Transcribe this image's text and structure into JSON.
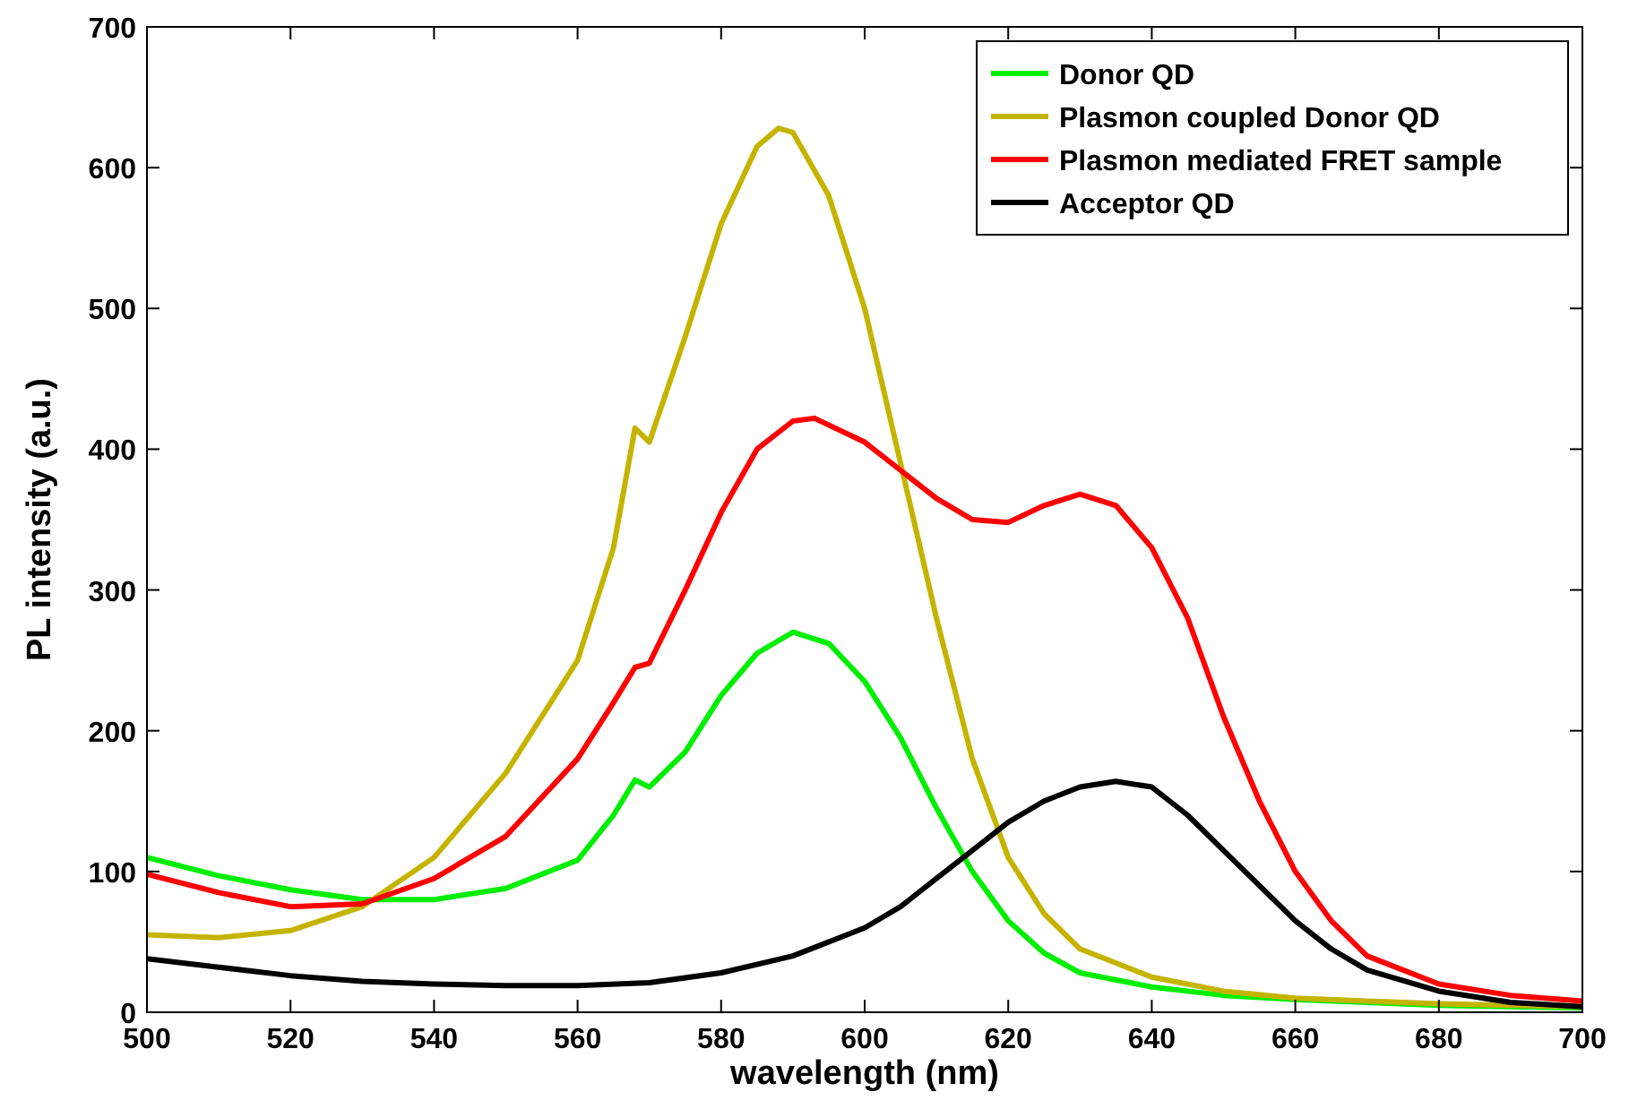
{
  "chart_data": {
    "type": "line",
    "xlabel": "wavelength (nm)",
    "ylabel": "PL intensity (a.u.)",
    "xlim": [
      500,
      700
    ],
    "ylim": [
      0,
      700
    ],
    "xticks": [
      500,
      520,
      540,
      560,
      580,
      600,
      620,
      640,
      660,
      680,
      700
    ],
    "yticks": [
      0,
      100,
      200,
      300,
      400,
      500,
      600,
      700
    ],
    "grid": false,
    "legend": "top right",
    "line_style": "solid",
    "marker": "none",
    "series": [
      {
        "name": "Donor QD",
        "color": "#00ee00",
        "x": [
          500,
          510,
          520,
          530,
          540,
          550,
          560,
          565,
          568,
          570,
          575,
          580,
          585,
          590,
          595,
          600,
          605,
          610,
          615,
          620,
          625,
          630,
          640,
          650,
          660,
          670,
          680,
          690,
          700
        ],
        "values": [
          110,
          97,
          87,
          80,
          80,
          88,
          108,
          140,
          165,
          160,
          185,
          225,
          255,
          270,
          262,
          235,
          195,
          145,
          100,
          65,
          42,
          28,
          18,
          12,
          9,
          7,
          5,
          4,
          3
        ]
      },
      {
        "name": "Plasmon coupled Donor QD",
        "color": "#c4b400",
        "x": [
          500,
          510,
          520,
          530,
          540,
          550,
          560,
          565,
          568,
          570,
          575,
          580,
          585,
          588,
          590,
          595,
          600,
          605,
          610,
          615,
          620,
          625,
          630,
          640,
          650,
          660,
          670,
          680,
          690,
          700
        ],
        "values": [
          55,
          53,
          58,
          75,
          110,
          170,
          250,
          330,
          415,
          405,
          480,
          560,
          615,
          628,
          625,
          580,
          500,
          390,
          280,
          180,
          110,
          70,
          45,
          25,
          15,
          10,
          8,
          6,
          5,
          4
        ]
      },
      {
        "name": "Plasmon mediated FRET sample",
        "color": "#ff0000",
        "x": [
          500,
          510,
          520,
          530,
          540,
          550,
          560,
          565,
          568,
          570,
          575,
          580,
          585,
          590,
          593,
          600,
          605,
          610,
          615,
          620,
          625,
          630,
          635,
          640,
          645,
          650,
          655,
          660,
          665,
          670,
          680,
          690,
          700
        ],
        "values": [
          98,
          85,
          75,
          77,
          95,
          125,
          180,
          220,
          245,
          248,
          300,
          355,
          400,
          420,
          422,
          405,
          385,
          365,
          350,
          348,
          360,
          368,
          360,
          330,
          280,
          210,
          150,
          100,
          65,
          40,
          20,
          12,
          8
        ]
      },
      {
        "name": "Acceptor QD",
        "color": "#000000",
        "x": [
          500,
          510,
          520,
          530,
          540,
          550,
          560,
          570,
          580,
          590,
          600,
          605,
          610,
          615,
          620,
          625,
          630,
          635,
          640,
          645,
          650,
          655,
          660,
          665,
          670,
          680,
          690,
          700
        ],
        "values": [
          38,
          32,
          26,
          22,
          20,
          19,
          19,
          21,
          28,
          40,
          60,
          75,
          95,
          115,
          135,
          150,
          160,
          164,
          160,
          140,
          115,
          90,
          65,
          45,
          30,
          15,
          7,
          4
        ]
      }
    ]
  }
}
